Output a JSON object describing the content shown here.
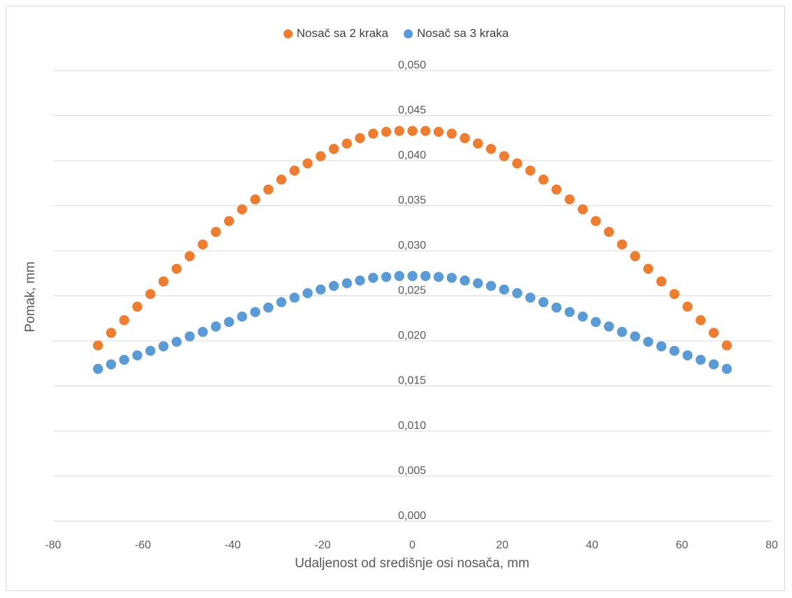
{
  "chart_data": {
    "type": "scatter",
    "title": "",
    "xlabel": "Udaljenost od središnje osi nosača, mm",
    "ylabel": "Pomak, mm",
    "xlim": [
      -80,
      80
    ],
    "ylim": [
      0,
      0.05
    ],
    "x_ticks": [
      "-80",
      "-60",
      "-40",
      "-20",
      "0",
      "20",
      "40",
      "60",
      "80"
    ],
    "y_ticks": [
      "0,000",
      "0,005",
      "0,010",
      "0,015",
      "0,020",
      "0,025",
      "0,030",
      "0,035",
      "0,040",
      "0,045",
      "0,050"
    ],
    "grid": "horizontal",
    "legend_position": "top",
    "x": [
      -70,
      -67.08,
      -64.17,
      -61.25,
      -58.33,
      -55.42,
      -52.5,
      -49.58,
      -46.67,
      -43.75,
      -40.83,
      -37.92,
      -35,
      -32.08,
      -29.17,
      -26.25,
      -23.33,
      -20.42,
      -17.5,
      -14.58,
      -11.67,
      -8.75,
      -5.83,
      -2.92,
      0,
      2.92,
      5.83,
      8.75,
      11.67,
      14.58,
      17.5,
      20.42,
      23.33,
      26.25,
      29.17,
      32.08,
      35,
      37.92,
      40.83,
      43.75,
      46.67,
      49.58,
      52.5,
      55.42,
      58.33,
      61.25,
      64.17,
      67.08,
      70
    ],
    "series": [
      {
        "name": "Nosač sa 2 kraka",
        "color": "#ED7D31",
        "values": [
          0.0195,
          0.0209,
          0.0223,
          0.0238,
          0.0252,
          0.0266,
          0.028,
          0.0294,
          0.0307,
          0.0321,
          0.0333,
          0.0346,
          0.0357,
          0.0368,
          0.0379,
          0.0389,
          0.0397,
          0.0405,
          0.0413,
          0.0419,
          0.0425,
          0.043,
          0.0432,
          0.0433,
          0.0433,
          0.0433,
          0.0432,
          0.043,
          0.0425,
          0.0419,
          0.0413,
          0.0405,
          0.0397,
          0.0389,
          0.0379,
          0.0368,
          0.0357,
          0.0346,
          0.0333,
          0.0321,
          0.0307,
          0.0294,
          0.028,
          0.0266,
          0.0252,
          0.0238,
          0.0223,
          0.0209,
          0.0195
        ]
      },
      {
        "name": "Nosač sa 3 kraka",
        "color": "#5B9BD5",
        "values": [
          0.0169,
          0.0174,
          0.0179,
          0.0184,
          0.0189,
          0.0194,
          0.0199,
          0.0205,
          0.021,
          0.0216,
          0.0221,
          0.0227,
          0.0232,
          0.0237,
          0.0243,
          0.0248,
          0.0253,
          0.0257,
          0.0261,
          0.0264,
          0.0267,
          0.027,
          0.0271,
          0.0272,
          0.0272,
          0.0272,
          0.0271,
          0.027,
          0.0267,
          0.0264,
          0.0261,
          0.0257,
          0.0253,
          0.0248,
          0.0243,
          0.0237,
          0.0232,
          0.0227,
          0.0221,
          0.0216,
          0.021,
          0.0205,
          0.0199,
          0.0194,
          0.0189,
          0.0184,
          0.0179,
          0.0174,
          0.0169
        ]
      }
    ]
  }
}
